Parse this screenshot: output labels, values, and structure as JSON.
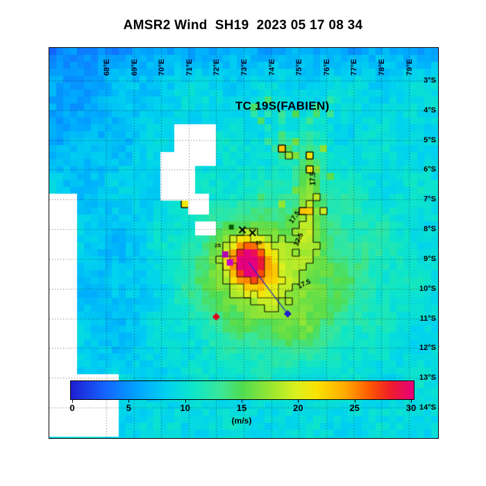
{
  "title": "AMSR2 Wind  SH19  2023 05 17 08 34",
  "storm_label": "TC 19S(FABIEN)",
  "chart_data": {
    "type": "heatmap",
    "variable": "wind speed",
    "title": "AMSR2 Wind  SH19  2023 05 17 08 34",
    "annotation": "TC 19S(FABIEN)",
    "colorbar": {
      "min": 0,
      "max": 30,
      "tick_values": [
        0,
        5,
        10,
        15,
        20,
        25,
        30
      ],
      "tick_labels": [
        "0",
        "5",
        "10",
        "15",
        "20",
        "25",
        "30"
      ],
      "label": "(m/s)",
      "stops": [
        [
          0.0,
          "#1e1ed2"
        ],
        [
          0.1,
          "#1464ff"
        ],
        [
          0.2,
          "#00a8ff"
        ],
        [
          0.28,
          "#00d2f0"
        ],
        [
          0.36,
          "#0ee6c8"
        ],
        [
          0.44,
          "#3ce696"
        ],
        [
          0.5,
          "#50dc50"
        ],
        [
          0.58,
          "#96e632"
        ],
        [
          0.66,
          "#dcf01e"
        ],
        [
          0.72,
          "#fae100"
        ],
        [
          0.8,
          "#ffaa00"
        ],
        [
          0.87,
          "#ff5a00"
        ],
        [
          0.93,
          "#f01e28"
        ],
        [
          1.0,
          "#e6007d"
        ]
      ]
    },
    "axes": {
      "lon_min": 65.93,
      "lon_max": 80.07,
      "lat_min": 1.9,
      "lat_max": 15.03,
      "lon_tick_values": [
        68,
        69,
        70,
        71,
        72,
        73,
        74,
        75,
        76,
        77,
        78,
        79
      ],
      "lon_tick_labels": [
        "68°E",
        "69°E",
        "70°E",
        "71°E",
        "72°E",
        "73°E",
        "74°E",
        "75°E",
        "76°E",
        "77°E",
        "78°E",
        "79°E"
      ],
      "lat_tick_values": [
        3,
        4,
        5,
        6,
        7,
        8,
        9,
        10,
        11,
        12,
        13,
        14
      ],
      "lat_tick_labels": [
        "3°S",
        "4°S",
        "5°S",
        "6°S",
        "7°S",
        "8°S",
        "9°S",
        "10°S",
        "11°S",
        "12°S",
        "13°S",
        "14°S"
      ],
      "grid": "dotted"
    },
    "grid_resolution_deg": 0.25,
    "field": {
      "base": 9.3,
      "noise_amp": 1.0,
      "components": [
        {
          "name": "north-low-band",
          "lon": 73.0,
          "lat": 0.9,
          "slon": 45.0,
          "slat": 1.5,
          "amp": -5.5
        },
        {
          "name": "northwest-low",
          "lon": 66.3,
          "lat": 3.8,
          "slon": 2.8,
          "slat": 2.4,
          "amp": -3.4
        },
        {
          "name": "west-low",
          "lon": 68.3,
          "lat": 9.8,
          "slon": 1.9,
          "slat": 3.6,
          "amp": -2.3
        },
        {
          "name": "cyclone-core",
          "lon": 73.15,
          "lat": 9.1,
          "slon": 0.55,
          "slat": 0.6,
          "amp": 12.5
        },
        {
          "name": "cyclone-inner",
          "lon": 73.25,
          "lat": 9.2,
          "slon": 1.25,
          "slat": 1.15,
          "amp": 6.5
        },
        {
          "name": "cyclone-outer",
          "lon": 73.9,
          "lat": 9.6,
          "slon": 2.9,
          "slat": 2.4,
          "amp": 7.8
        },
        {
          "name": "spiral-arm-north",
          "lon": 75.35,
          "lat": 6.8,
          "slon": 0.45,
          "slat": 1.8,
          "amp": 6.8
        },
        {
          "name": "arm-cell-north",
          "lon": 74.45,
          "lat": 5.3,
          "slon": 0.33,
          "slat": 0.33,
          "amp": 8.0
        },
        {
          "name": "east-green",
          "lon": 77.0,
          "lat": 8.8,
          "slon": 2.0,
          "slat": 2.6,
          "amp": 1.6
        },
        {
          "name": "southeast-tail",
          "lon": 74.9,
          "lat": 11.3,
          "slon": 1.4,
          "slat": 1.0,
          "amp": 2.2
        }
      ]
    },
    "missing_regions": [
      {
        "lon": [
          65.9,
          66.85
        ],
        "lat": [
          6.85,
          13.25
        ]
      },
      {
        "lon": [
          65.9,
          68.45
        ],
        "lat": [
          12.95,
          15.1
        ]
      },
      {
        "lon": [
          70.6,
          71.95
        ],
        "lat": [
          4.5,
          5.95
        ]
      },
      {
        "lon": [
          69.95,
          71.3
        ],
        "lat": [
          5.35,
          7.05
        ]
      },
      {
        "lon": [
          70.95,
          71.75
        ],
        "lat": [
          6.9,
          7.5
        ]
      },
      {
        "lon": [
          71.3,
          71.95
        ],
        "lat": [
          7.85,
          8.3
        ]
      }
    ],
    "speckle_regions": [
      {
        "lon": [
          73.3,
          76.6
        ],
        "lat": [
          3.6,
          7.6
        ],
        "chance": 0.13,
        "boost": 4.5
      }
    ],
    "hot_cells": [
      {
        "lon": 70.8,
        "lat": 7.2,
        "value": 21
      },
      {
        "lon": 74.45,
        "lat": 5.25,
        "value": 23
      }
    ],
    "contours": {
      "levels": [
        17.5,
        20,
        25
      ],
      "labels": [
        {
          "text": "17.5",
          "lon": 75.52,
          "lat": 6.3,
          "rot": -90,
          "size": 10
        },
        {
          "text": "17.5",
          "lon": 74.85,
          "lat": 7.6,
          "rot": -55,
          "size": 10
        },
        {
          "text": "17.5",
          "lon": 75.0,
          "lat": 8.35,
          "rot": -65,
          "size": 10
        },
        {
          "text": "17.5",
          "lon": 75.2,
          "lat": 9.85,
          "rot": -25,
          "size": 10
        },
        {
          "text": "25",
          "lon": 72.05,
          "lat": 8.55,
          "rot": 0,
          "size": 8
        },
        {
          "text": "20",
          "lon": 73.55,
          "lat": 8.45,
          "rot": 0,
          "size": 8
        }
      ]
    },
    "markers": [
      {
        "type": "cross",
        "color": "#000000",
        "lon": 72.95,
        "lat": 8.02,
        "size": 9
      },
      {
        "type": "cross",
        "color": "#000000",
        "lon": 73.32,
        "lat": 8.12,
        "size": 9
      },
      {
        "type": "square",
        "color": "#b400b4",
        "lon": 72.33,
        "lat": 8.85,
        "size": 9
      },
      {
        "type": "square",
        "color": "#c800c8",
        "lon": 72.5,
        "lat": 9.12,
        "size": 9
      },
      {
        "type": "square",
        "color": "#005a00",
        "lon": 72.55,
        "lat": 7.93,
        "size": 7
      },
      {
        "type": "diamond",
        "color": "#e10019",
        "lon": 72.0,
        "lat": 10.95,
        "size": 11
      },
      {
        "type": "diamond",
        "color": "#1e1ecd",
        "lon": 74.6,
        "lat": 10.85,
        "size": 11
      }
    ],
    "track_line": {
      "from": {
        "lon": 73.18,
        "lat": 9.12
      },
      "to": {
        "lon": 74.6,
        "lat": 10.85
      },
      "color": "#2828c8"
    }
  }
}
